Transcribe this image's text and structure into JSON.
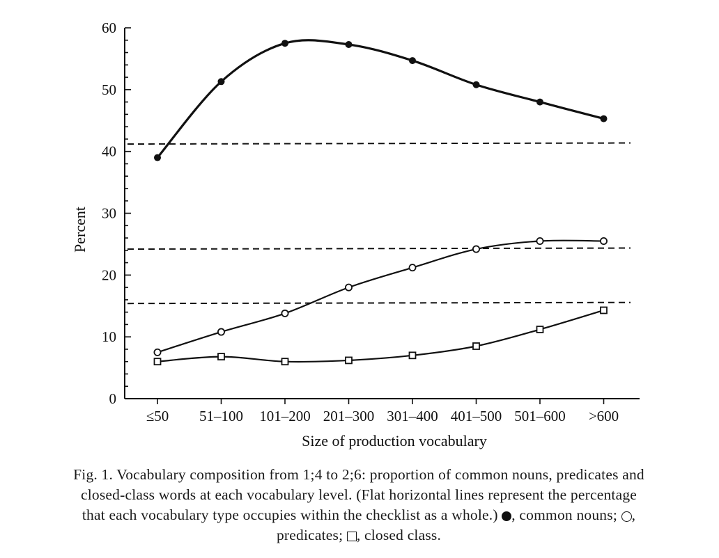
{
  "chart_data": {
    "type": "line",
    "title": "",
    "xlabel": "Size of production vocabulary",
    "ylabel": "Percent",
    "categories": [
      "≤50",
      "51–100",
      "101–200",
      "201–300",
      "301–400",
      "401–500",
      "501–600",
      ">600"
    ],
    "ylim": [
      0,
      60
    ],
    "yticks": [
      0,
      10,
      20,
      30,
      40,
      50,
      60
    ],
    "grid": false,
    "series": [
      {
        "name": "common nouns",
        "marker": "filled-circle",
        "values": [
          39.0,
          51.3,
          57.5,
          57.3,
          54.7,
          50.8,
          48.0,
          45.3
        ]
      },
      {
        "name": "predicates",
        "marker": "open-circle",
        "values": [
          7.5,
          10.8,
          13.8,
          18.0,
          21.2,
          24.2,
          25.5,
          25.5
        ]
      },
      {
        "name": "closed class",
        "marker": "open-square",
        "values": [
          6.0,
          6.8,
          6.0,
          6.2,
          7.0,
          8.5,
          11.2,
          14.3
        ]
      }
    ],
    "reference_lines": [
      {
        "for": "common nouns",
        "y": 41.2
      },
      {
        "for": "predicates",
        "y": 24.2
      },
      {
        "for": "closed class",
        "y": 15.4
      }
    ],
    "colors": {
      "ink": "#111111"
    }
  },
  "caption": {
    "line1": "Fig. 1. Vocabulary composition from 1;4 to 2;6: proportion of common nouns, predicates and",
    "line2": "closed-class words at each vocabulary level. (Flat horizontal lines represent the percentage",
    "line3a": "that each vocabulary type occupies within the checklist as a whole.)",
    "line3b": ", common nouns;",
    "line3c": ",",
    "line4a": "predicates;",
    "line4b": ", closed class."
  }
}
